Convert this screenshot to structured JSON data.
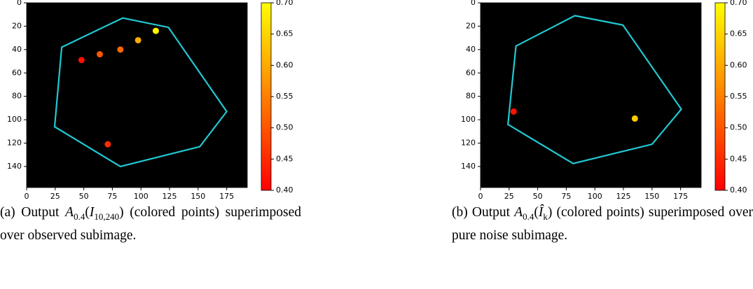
{
  "chart_data": [
    {
      "type": "scatter",
      "cmap_colors": [
        "#ff0000",
        "#ffff00"
      ],
      "clim": [
        0.4,
        0.7
      ],
      "cticks": [
        {
          "value": 0.4,
          "label": "0.40"
        },
        {
          "value": 0.45,
          "label": "0.45"
        },
        {
          "value": 0.5,
          "label": "0.50"
        },
        {
          "value": 0.55,
          "label": "0.55"
        },
        {
          "value": 0.6,
          "label": "0.60"
        },
        {
          "value": 0.65,
          "label": "0.65"
        },
        {
          "value": 0.7,
          "label": "0.70"
        }
      ],
      "xlim": [
        0,
        193
      ],
      "ylim": [
        158,
        0
      ],
      "xticks": [
        0,
        25,
        50,
        75,
        100,
        125,
        150,
        175
      ],
      "yticks": [
        0,
        20,
        40,
        60,
        80,
        100,
        120,
        140
      ],
      "polygon": {
        "color": "#22c8d2",
        "x": [
          84,
          124,
          175,
          151.5,
          82,
          24.5,
          30.7
        ],
        "y": [
          13,
          21,
          93,
          123,
          140,
          106,
          38
        ]
      },
      "points": {
        "x": [
          113,
          97.5,
          82,
          64,
          48,
          71
        ],
        "y": [
          24,
          32,
          40,
          44,
          49,
          121
        ],
        "values": [
          0.69,
          0.6,
          0.52,
          0.5,
          0.42,
          0.45
        ]
      },
      "caption": [
        {
          "text": "(a) Output "
        },
        {
          "text": "A",
          "sub": "0.4"
        },
        {
          "text": "("
        },
        {
          "text": "I",
          "sub": "10,240"
        },
        {
          "text": ") (colored points) superimposed over observed subimage."
        }
      ]
    },
    {
      "type": "scatter",
      "cmap_colors": [
        "#ff0000",
        "#ffff00"
      ],
      "clim": [
        0.4,
        0.7
      ],
      "cticks": [
        {
          "value": 0.4,
          "label": "0.40"
        },
        {
          "value": 0.45,
          "label": "0.45"
        },
        {
          "value": 0.5,
          "label": "0.50"
        },
        {
          "value": 0.55,
          "label": "0.55"
        },
        {
          "value": 0.6,
          "label": "0.60"
        },
        {
          "value": 0.65,
          "label": "0.65"
        },
        {
          "value": 0.7,
          "label": "0.70"
        }
      ],
      "xlim": [
        0,
        193
      ],
      "ylim": [
        158,
        0
      ],
      "xticks": [
        0,
        25,
        50,
        75,
        100,
        125,
        150,
        175
      ],
      "yticks": [
        0,
        20,
        40,
        60,
        80,
        100,
        120,
        140
      ],
      "polygon": {
        "color": "#22c8d2",
        "x": [
          82.5,
          124.5,
          175.6,
          150,
          81,
          24,
          31
        ],
        "y": [
          11,
          19,
          91,
          121,
          137.5,
          104,
          37
        ]
      },
      "points": {
        "x": [
          29,
          135
        ],
        "y": [
          93,
          99
        ],
        "values": [
          0.42,
          0.64
        ]
      },
      "caption": [
        {
          "text": "(b) Output "
        },
        {
          "text": "A",
          "sub": "0.4"
        },
        {
          "text": "("
        },
        {
          "text": "Î",
          "sub": "k"
        },
        {
          "text": ") (colored points) superimposed over pure noise subimage."
        }
      ]
    }
  ]
}
